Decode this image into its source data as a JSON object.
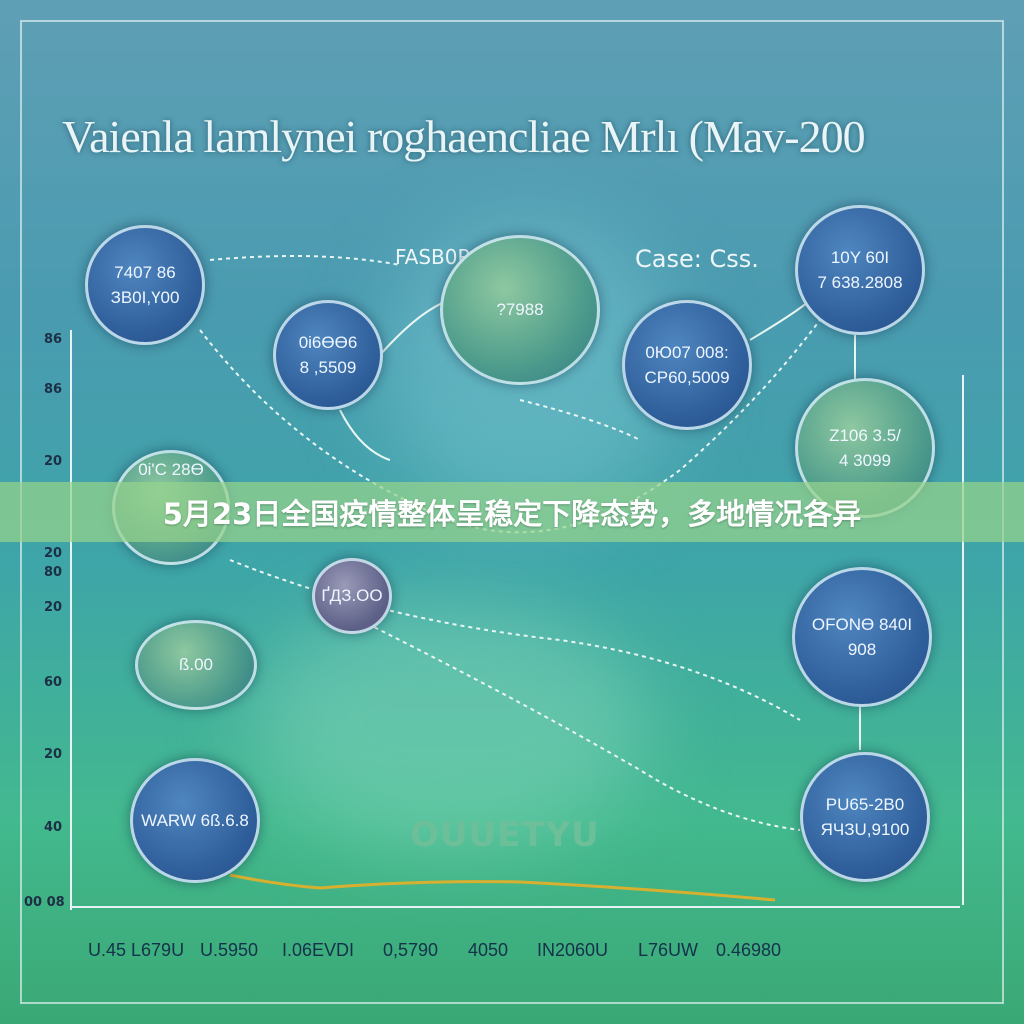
{
  "banner": {
    "caption": "5月23日全国疫情整体呈稳定下降态势，多地情况各异"
  },
  "graphic": {
    "title": "Vaienla lamlynei roghaencliae Mrlı (Mav-200",
    "top_label_1": "FASB0R/·?",
    "top_label_2": "Case: Css.",
    "bottom_label": "OUUETYU",
    "circles": [
      {
        "line1": "7407 86",
        "line2": "ЗВ0І,Ү00"
      },
      {
        "line1": "0і6ӨӨ6",
        "line2": "8 ,5509"
      },
      {
        "line1": "?7988",
        "line2": ""
      },
      {
        "line1": "0Ю07 008:",
        "line2": "CP60,5009"
      },
      {
        "line1": "10Y 60Ӏ",
        "line2": "7 638.2808"
      },
      {
        "line1": "Z106 3.5/",
        "line2": "4 3099"
      },
      {
        "line1": "0і'С 28Ө",
        "line2": ""
      },
      {
        "line1": "ҐДЗ.ОО",
        "line2": ""
      },
      {
        "line1": "ß.00",
        "line2": ""
      },
      {
        "line1": "ОFОNӨ 840І",
        "line2": "908"
      },
      {
        "line1": "WARW 6ß.6.8",
        "line2": ""
      },
      {
        "line1": "PU65-2B0",
        "line2": "ЯЧЗU,9100"
      }
    ],
    "y_labels": [
      "86",
      "86",
      "20",
      "20",
      "80",
      "20",
      "60",
      "20",
      "40",
      "00 08"
    ],
    "x_labels": [
      "U.45 L679U",
      "U.5950",
      "I.06EVDI",
      "0,5790",
      "4050",
      "IN2060U",
      "L76UW",
      "0.46980"
    ]
  },
  "colors": {
    "banner": "#96d28c",
    "circle": "#2d5c98",
    "trend_line": "#d8b030"
  }
}
